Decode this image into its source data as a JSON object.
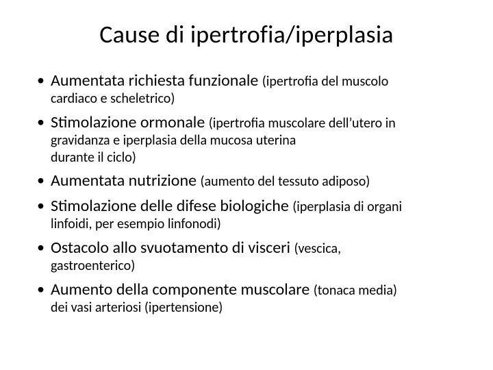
{
  "slide": {
    "title": "Cause di ipertrofia/iperplasia",
    "title_fontsize": 36,
    "body_lead_fontsize": 24,
    "body_paren_fontsize": 20,
    "background_color": "#ffffff",
    "text_color": "#000000",
    "bullets": [
      {
        "lead": "Aumentata richiesta funzionale ",
        "paren": "(ipertrofia del muscolo",
        "cont1": "cardiaco e scheletrico)"
      },
      {
        "lead": "Stimolazione ormonale ",
        "paren": "(ipertrofia muscolare dell’utero in",
        "cont1": "gravidanza e iperplasia della mucosa uterina",
        "cont2": "durante il ciclo)"
      },
      {
        "lead": "Aumentata nutrizione ",
        "paren": "(aumento del tessuto adiposo)"
      },
      {
        "lead": "Stimolazione delle difese biologiche ",
        "paren": "(iperplasia di organi",
        "cont1": "linfoidi, per esempio linfonodi)"
      },
      {
        "lead": "Ostacolo allo svuotamento di visceri ",
        "paren": "(vescica,",
        "cont1": "gastroenterico)"
      },
      {
        "lead": "Aumento della componente muscolare ",
        "paren": "(tonaca media)",
        "cont1": "dei vasi arteriosi (ipertensione)"
      }
    ]
  }
}
